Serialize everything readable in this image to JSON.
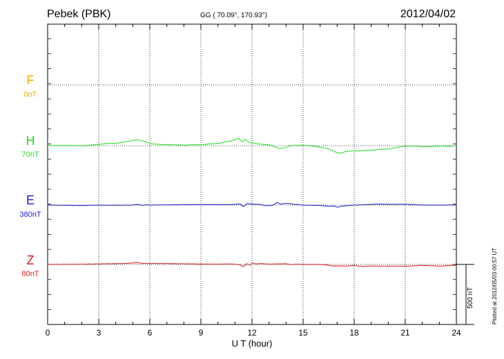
{
  "header": {
    "station": "Pebek (PBK)",
    "coords": "GG ( 70.09°, 170.93°)",
    "date": "2012/04/02"
  },
  "footer": {
    "plotted": "Plotted at 2012/05/03 00:57 UT"
  },
  "channels": [
    {
      "name": "F",
      "offset": "0nT",
      "color": "#f5a800"
    },
    {
      "name": "H",
      "offset": "70nT",
      "color": "#22dd22"
    },
    {
      "name": "E",
      "offset": "380nT",
      "color": "#1a1acc"
    },
    {
      "name": "Z",
      "offset": "80nT",
      "color": "#dd1a1a"
    }
  ],
  "scale_bar": {
    "label": "500 nT",
    "value": 500
  },
  "chart_data": {
    "type": "line",
    "xlabel": "U T (hour)",
    "xlim": [
      0,
      24
    ],
    "xticks": [
      0,
      3,
      6,
      9,
      12,
      15,
      18,
      21,
      24
    ],
    "grid": true,
    "series": [
      {
        "name": "H",
        "x": [
          0,
          1,
          2,
          2.5,
          3,
          3.5,
          4,
          4.5,
          5,
          5.3,
          5.6,
          5.9,
          6.2,
          6.5,
          7,
          8,
          9,
          10,
          10.5,
          11,
          11.2,
          11.4,
          11.6,
          11.8,
          12,
          12.5,
          13,
          13.3,
          13.6,
          13.9,
          14.2,
          14.5,
          15,
          15.5,
          16,
          16.3,
          16.6,
          16.9,
          17.1,
          17.3,
          17.6,
          18,
          18.5,
          19,
          19.5,
          20,
          20.5,
          20.8,
          21,
          21.3,
          21.6,
          22,
          22.5,
          23,
          23.5,
          24
        ],
        "values": [
          0,
          2,
          0,
          4,
          12,
          18,
          20,
          28,
          46,
          48,
          40,
          24,
          15,
          11,
          8,
          5,
          9,
          19,
          32,
          48,
          63,
          32,
          55,
          28,
          22,
          12,
          7,
          -8,
          -23,
          -18,
          -3,
          3,
          3,
          -3,
          -12,
          -20,
          -34,
          -52,
          -62,
          -58,
          -45,
          -46,
          -40,
          -38,
          -30,
          -28,
          -15,
          -8,
          -4,
          -3,
          -3,
          -8,
          -7,
          -4,
          -5,
          -2
        ]
      },
      {
        "name": "E",
        "x": [
          0,
          1,
          2,
          2.5,
          3,
          4,
          5,
          5.3,
          5.5,
          5.8,
          6,
          7,
          8,
          9,
          10,
          10.6,
          11,
          11.3,
          11.5,
          11.7,
          12,
          12.4,
          12.8,
          13.2,
          13.5,
          13.7,
          13.9,
          14.2,
          14.5,
          15,
          16,
          16.5,
          16.8,
          17,
          17.2,
          17.5,
          18,
          18.5,
          19,
          19.5,
          20,
          21,
          21.5,
          22,
          23,
          24
        ],
        "values": [
          0,
          -2,
          -4,
          -2,
          -1,
          -2,
          0,
          6,
          -2,
          2,
          0,
          2,
          3,
          4,
          3,
          4,
          5,
          10,
          -14,
          12,
          8,
          6,
          -5,
          -3,
          22,
          6,
          14,
          12,
          6,
          0,
          -4,
          -10,
          -8,
          -18,
          -12,
          -6,
          0,
          2,
          6,
          8,
          6,
          6,
          4,
          0,
          -1,
          1
        ]
      },
      {
        "name": "Z",
        "x": [
          0,
          1,
          2,
          3,
          3.5,
          4,
          4.5,
          5,
          5.3,
          5.6,
          6,
          7,
          8,
          9,
          10,
          10.5,
          11,
          11.3,
          11.5,
          11.7,
          11.9,
          12,
          12.2,
          12.5,
          13,
          13.5,
          14,
          14.3,
          14.6,
          15,
          16,
          16.5,
          16.8,
          17,
          17.2,
          17.5,
          18,
          18.5,
          19,
          19.5,
          20,
          21,
          22,
          23,
          24
        ],
        "values": [
          0,
          1,
          2,
          4,
          6,
          6,
          8,
          12,
          16,
          8,
          8,
          7,
          5,
          3,
          2,
          4,
          2,
          -4,
          -18,
          6,
          -6,
          14,
          4,
          8,
          2,
          4,
          6,
          -2,
          2,
          0,
          0,
          -6,
          -14,
          -14,
          -12,
          -14,
          -8,
          -18,
          -12,
          -16,
          -14,
          -16,
          -8,
          -14,
          -6
        ]
      }
    ]
  }
}
